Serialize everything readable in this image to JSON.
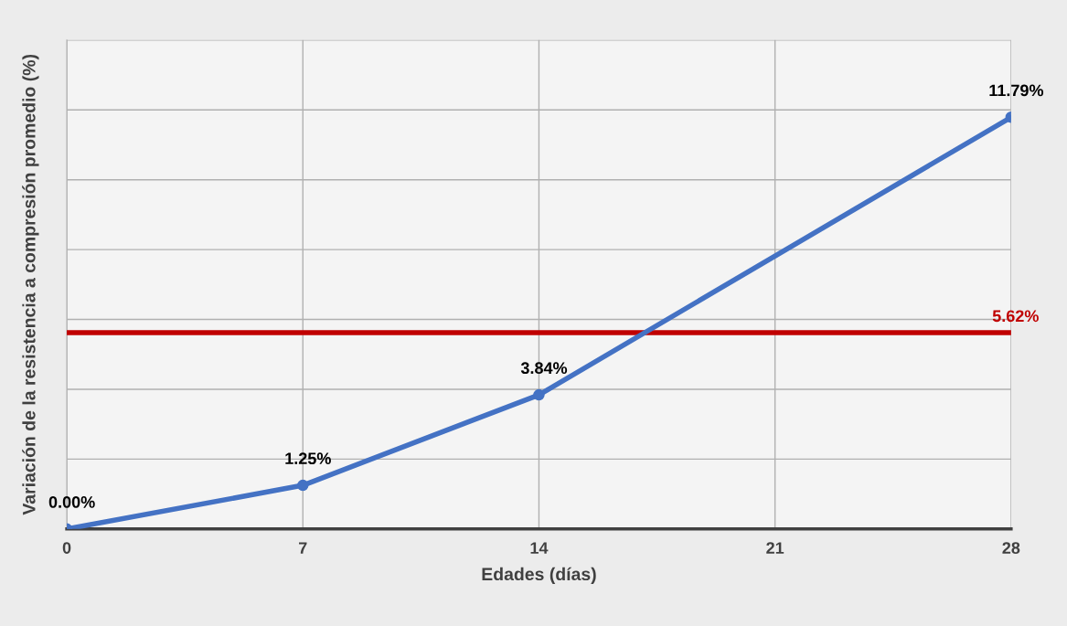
{
  "chart_data": {
    "type": "line",
    "xlabel": "Edades (días)",
    "ylabel": "Variación de la resistencia a compresión promedio (%)",
    "x": [
      0,
      7,
      14,
      28
    ],
    "series": [
      {
        "color": "#4472c4",
        "values": [
          0,
          1.25,
          3.84,
          11.79
        ],
        "value_labels": [
          "0.00%",
          "1.25%",
          "3.84%",
          "11.79%"
        ]
      }
    ],
    "xlim": [
      0,
      28
    ],
    "xticks": [
      0,
      7,
      14,
      21,
      28
    ],
    "ylim": [
      0,
      14
    ],
    "yticks": [
      {
        "value": 0,
        "label": null
      },
      {
        "value": 2,
        "label": null
      },
      {
        "value": 4,
        "label": null
      },
      {
        "value": 6,
        "label": null
      },
      {
        "value": 8,
        "label": null
      },
      {
        "value": 10,
        "label": null
      },
      {
        "value": 12,
        "label": null
      },
      {
        "value": 14,
        "label": null
      }
    ],
    "tick_labels": "x",
    "grid": true,
    "marker": "circle",
    "line_style": "solid",
    "ref_lines": [
      {
        "axis": "y",
        "value": 5.62,
        "label": "5.62%",
        "color": "#c00000"
      }
    ]
  }
}
